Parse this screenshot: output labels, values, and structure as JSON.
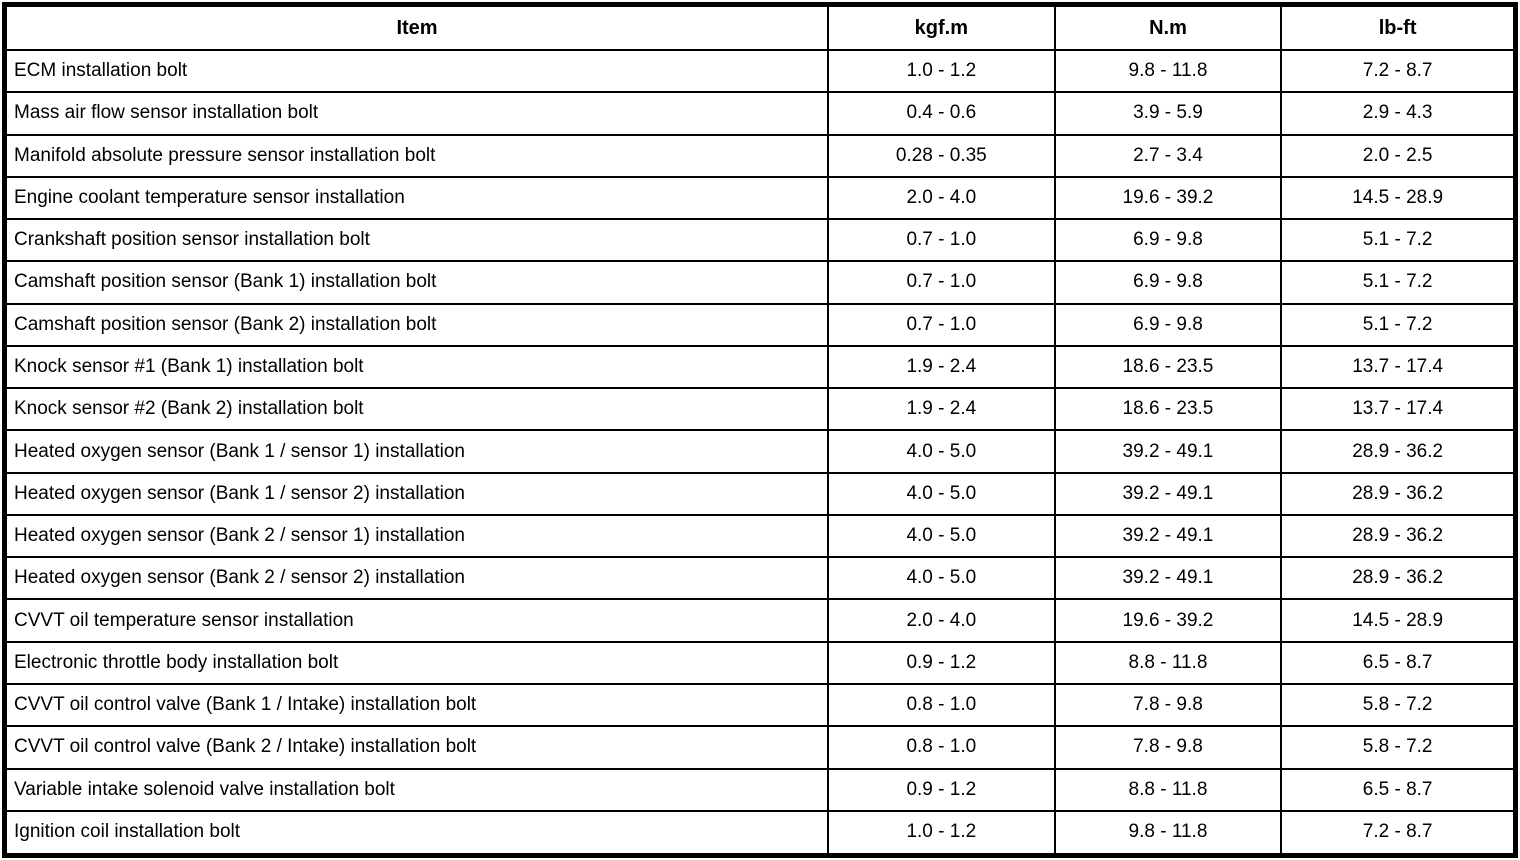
{
  "table": {
    "headers": {
      "item": "Item",
      "kgfm": "kgf.m",
      "nm": "N.m",
      "lbft": "lb-ft"
    },
    "rows": [
      {
        "item": "ECM installation bolt",
        "kgfm": "1.0 - 1.2",
        "nm": "9.8 - 11.8",
        "lbft": "7.2 - 8.7"
      },
      {
        "item": "Mass air flow sensor installation bolt",
        "kgfm": "0.4 - 0.6",
        "nm": "3.9 - 5.9",
        "lbft": "2.9 - 4.3"
      },
      {
        "item": "Manifold absolute pressure sensor installation bolt",
        "kgfm": "0.28 - 0.35",
        "nm": "2.7 - 3.4",
        "lbft": "2.0 - 2.5"
      },
      {
        "item": "Engine coolant temperature sensor installation",
        "kgfm": "2.0 - 4.0",
        "nm": "19.6 - 39.2",
        "lbft": "14.5 - 28.9"
      },
      {
        "item": "Crankshaft position sensor installation bolt",
        "kgfm": "0.7 - 1.0",
        "nm": "6.9 - 9.8",
        "lbft": "5.1 - 7.2"
      },
      {
        "item": "Camshaft position sensor (Bank 1) installation bolt",
        "kgfm": "0.7 - 1.0",
        "nm": "6.9 - 9.8",
        "lbft": "5.1 - 7.2"
      },
      {
        "item": "Camshaft position sensor (Bank 2) installation bolt",
        "kgfm": "0.7 - 1.0",
        "nm": "6.9 - 9.8",
        "lbft": "5.1 - 7.2"
      },
      {
        "item": "Knock sensor #1 (Bank 1) installation bolt",
        "kgfm": "1.9 - 2.4",
        "nm": "18.6 - 23.5",
        "lbft": "13.7 - 17.4"
      },
      {
        "item": "Knock sensor #2 (Bank 2) installation bolt",
        "kgfm": "1.9 - 2.4",
        "nm": "18.6 - 23.5",
        "lbft": "13.7 - 17.4"
      },
      {
        "item": "Heated oxygen sensor (Bank 1 / sensor 1) installation",
        "kgfm": "4.0 - 5.0",
        "nm": "39.2 - 49.1",
        "lbft": "28.9 - 36.2"
      },
      {
        "item": "Heated oxygen sensor (Bank 1 / sensor 2) installation",
        "kgfm": "4.0 - 5.0",
        "nm": "39.2 - 49.1",
        "lbft": "28.9 - 36.2"
      },
      {
        "item": "Heated oxygen sensor (Bank 2 / sensor 1) installation",
        "kgfm": "4.0 - 5.0",
        "nm": "39.2 - 49.1",
        "lbft": "28.9 - 36.2"
      },
      {
        "item": "Heated oxygen sensor (Bank 2 / sensor 2) installation",
        "kgfm": "4.0 - 5.0",
        "nm": "39.2 - 49.1",
        "lbft": "28.9 - 36.2"
      },
      {
        "item": "CVVT oil temperature sensor installation",
        "kgfm": "2.0 - 4.0",
        "nm": "19.6 - 39.2",
        "lbft": "14.5 - 28.9"
      },
      {
        "item": "Electronic throttle body installation bolt",
        "kgfm": "0.9 - 1.2",
        "nm": "8.8 - 11.8",
        "lbft": "6.5 - 8.7"
      },
      {
        "item": "CVVT oil control valve (Bank 1 / Intake) installation bolt",
        "kgfm": "0.8 - 1.0",
        "nm": "7.8 - 9.8",
        "lbft": "5.8 - 7.2"
      },
      {
        "item": "CVVT oil control valve (Bank 2 / Intake) installation bolt",
        "kgfm": "0.8 - 1.0",
        "nm": "7.8 - 9.8",
        "lbft": "5.8 - 7.2"
      },
      {
        "item": "Variable intake solenoid valve installation bolt",
        "kgfm": "0.9 - 1.2",
        "nm": "8.8 - 11.8",
        "lbft": "6.5 - 8.7"
      },
      {
        "item": "Ignition coil installation bolt",
        "kgfm": "1.0 - 1.2",
        "nm": "9.8 - 11.8",
        "lbft": "7.2 - 8.7"
      }
    ]
  }
}
